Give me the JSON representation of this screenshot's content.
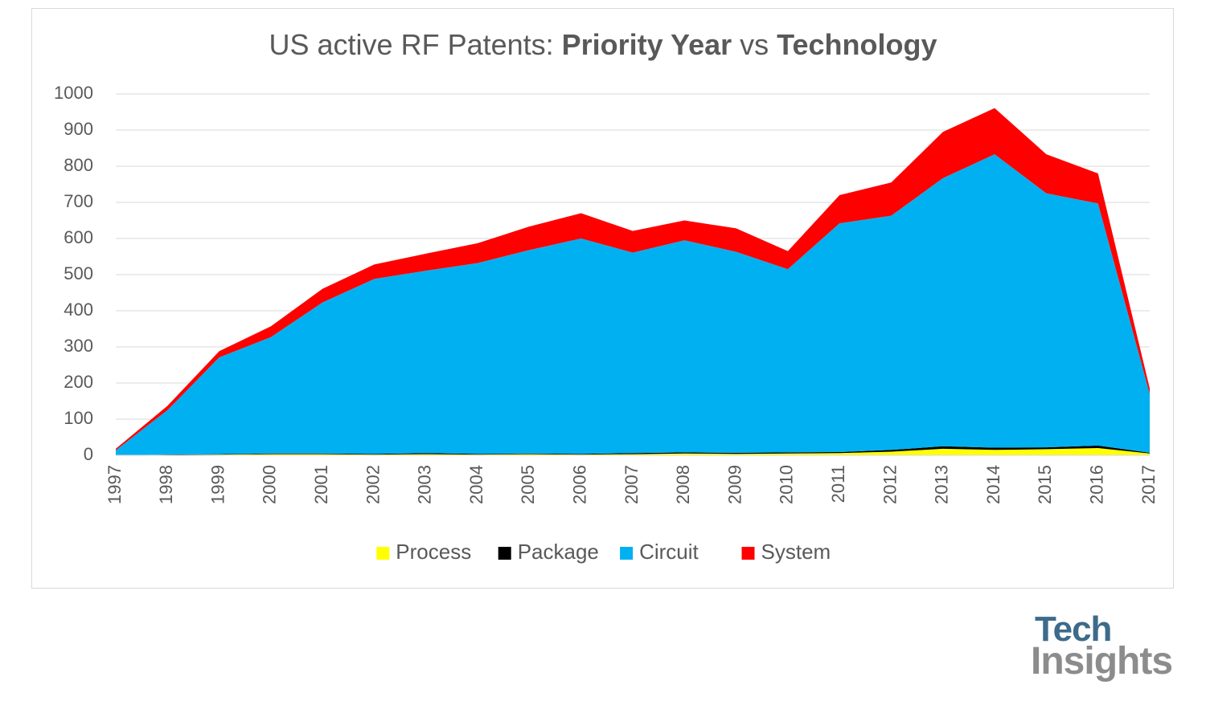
{
  "title": {
    "part1": "US active RF Patents:  ",
    "part2": "Priority Year",
    "part3": " vs ",
    "part4": "Technology"
  },
  "logo": {
    "line1": "Tech",
    "line2": "Insights"
  },
  "chart_data": {
    "type": "area",
    "stacked": true,
    "title": "US active RF Patents:  Priority Year vs Technology",
    "xlabel": "",
    "ylabel": "",
    "ylim": [
      0,
      1000
    ],
    "yticks": [
      0,
      100,
      200,
      300,
      400,
      500,
      600,
      700,
      800,
      900,
      1000
    ],
    "grid": true,
    "legend": "bottom",
    "categories": [
      "1997",
      "1998",
      "1999",
      "2000",
      "2001",
      "2002",
      "2003",
      "2004",
      "2005",
      "2006",
      "2007",
      "2008",
      "2009",
      "2010",
      "2011",
      "2012",
      "2013",
      "2014",
      "2015",
      "2016",
      "2017"
    ],
    "series": [
      {
        "name": "Process",
        "color": "#ffff00",
        "values": [
          0,
          1,
          2,
          3,
          3,
          2,
          3,
          2,
          3,
          2,
          3,
          5,
          4,
          5,
          6,
          10,
          18,
          15,
          17,
          20,
          5
        ]
      },
      {
        "name": "Package",
        "color": "#000000",
        "values": [
          0,
          1,
          1,
          2,
          2,
          2,
          3,
          2,
          2,
          2,
          3,
          3,
          3,
          3,
          3,
          5,
          7,
          6,
          5,
          7,
          2
        ]
      },
      {
        "name": "Circuit",
        "color": "#00b0f0",
        "values": [
          14,
          123,
          268,
          322,
          418,
          484,
          505,
          528,
          563,
          596,
          555,
          587,
          556,
          507,
          633,
          648,
          742,
          812,
          703,
          670,
          163
        ]
      },
      {
        "name": "System",
        "color": "#ff0000",
        "values": [
          4,
          12,
          17,
          30,
          38,
          40,
          47,
          55,
          65,
          70,
          60,
          55,
          65,
          50,
          78,
          92,
          128,
          128,
          108,
          83,
          15
        ]
      }
    ]
  }
}
